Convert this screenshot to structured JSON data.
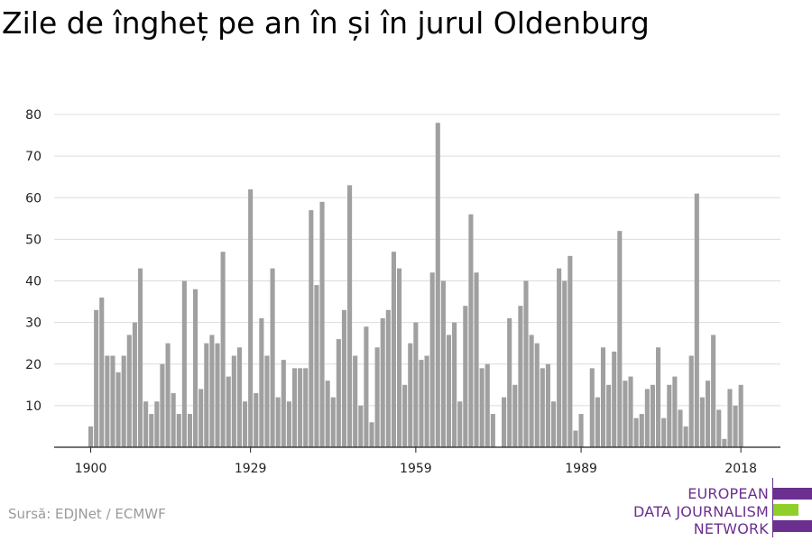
{
  "title": "Zile de îngheț pe an în și în jurul Oldenburg",
  "source": "Sursă: EDJNet / ECMWF",
  "logo": {
    "lines": [
      "EUROPEAN",
      "DATA JOURNALISM",
      "NETWORK"
    ],
    "colors": {
      "purple": "#6b2f8f",
      "green": "#8fcf2a"
    }
  },
  "chart_data": {
    "type": "bar",
    "title": "Zile de îngheț pe an în și în jurul Oldenburg",
    "xlabel": "",
    "ylabel": "",
    "x_ticks": [
      1900,
      1929,
      1959,
      1989,
      2018
    ],
    "y_ticks": [
      10,
      20,
      30,
      40,
      50,
      60,
      70,
      80
    ],
    "ylim": [
      0,
      80
    ],
    "grid": true,
    "bar_color": "#a0a0a0",
    "years": [
      1900,
      1901,
      1902,
      1903,
      1904,
      1905,
      1906,
      1907,
      1908,
      1909,
      1910,
      1911,
      1912,
      1913,
      1914,
      1915,
      1916,
      1917,
      1918,
      1919,
      1920,
      1921,
      1922,
      1923,
      1924,
      1925,
      1926,
      1927,
      1928,
      1929,
      1930,
      1931,
      1932,
      1933,
      1934,
      1935,
      1936,
      1937,
      1938,
      1939,
      1940,
      1941,
      1942,
      1943,
      1944,
      1945,
      1946,
      1947,
      1948,
      1949,
      1950,
      1951,
      1952,
      1953,
      1954,
      1955,
      1956,
      1957,
      1958,
      1959,
      1960,
      1961,
      1962,
      1963,
      1964,
      1965,
      1966,
      1967,
      1968,
      1969,
      1970,
      1971,
      1972,
      1973,
      1974,
      1975,
      1976,
      1977,
      1978,
      1979,
      1980,
      1981,
      1982,
      1983,
      1984,
      1985,
      1986,
      1987,
      1988,
      1989,
      1990,
      1991,
      1992,
      1993,
      1994,
      1995,
      1996,
      1997,
      1998,
      1999,
      2000,
      2001,
      2002,
      2003,
      2004,
      2005,
      2006,
      2007,
      2008,
      2009,
      2010,
      2011,
      2012,
      2013,
      2014,
      2015,
      2016,
      2017,
      2018
    ],
    "values": [
      5,
      33,
      36,
      22,
      22,
      18,
      22,
      27,
      30,
      43,
      11,
      8,
      11,
      20,
      25,
      13,
      8,
      40,
      8,
      38,
      14,
      25,
      27,
      25,
      47,
      17,
      22,
      24,
      11,
      62,
      13,
      31,
      22,
      43,
      12,
      21,
      11,
      19,
      19,
      19,
      57,
      39,
      59,
      16,
      12,
      26,
      33,
      63,
      22,
      10,
      29,
      6,
      24,
      31,
      33,
      47,
      43,
      15,
      25,
      30,
      21,
      22,
      42,
      78,
      40,
      27,
      30,
      11,
      34,
      56,
      42,
      19,
      20,
      8,
      0,
      12,
      31,
      15,
      34,
      40,
      27,
      25,
      19,
      20,
      11,
      43,
      40,
      46,
      4,
      8,
      0,
      19,
      12,
      24,
      15,
      23,
      52,
      16,
      17,
      7,
      8,
      14,
      15,
      24,
      7,
      15,
      17,
      9,
      5,
      22,
      61,
      12,
      16,
      27,
      9,
      2,
      14,
      10,
      15
    ]
  }
}
